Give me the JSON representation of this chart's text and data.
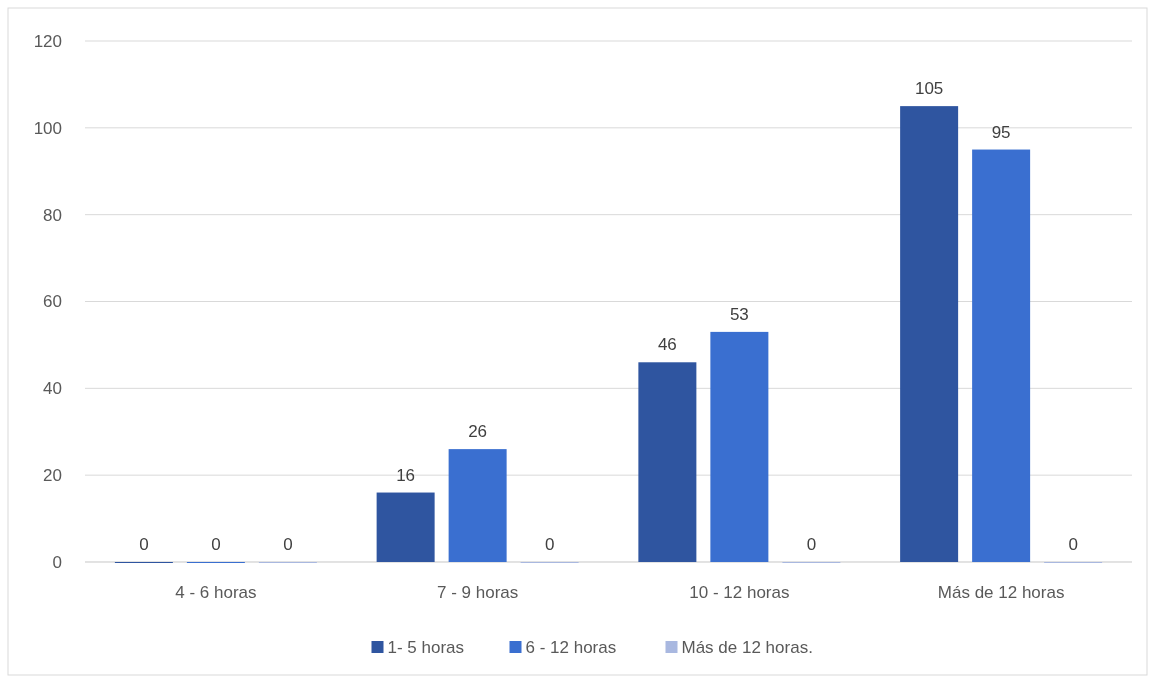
{
  "chart_data": {
    "type": "bar",
    "categories": [
      "4 - 6 horas",
      "7 - 9 horas",
      "10 - 12 horas",
      "Más de 12 horas"
    ],
    "series": [
      {
        "name": "1- 5 horas",
        "color": "#2f55a0",
        "values": [
          0,
          16,
          46,
          105
        ]
      },
      {
        "name": "6 - 12 horas",
        "color": "#3a6fd0",
        "values": [
          0,
          26,
          53,
          95
        ]
      },
      {
        "name": "Más de 12 horas.",
        "color": "#a9b8e0",
        "values": [
          0,
          0,
          0,
          0
        ]
      }
    ],
    "ylim": [
      0,
      120
    ],
    "yticks": [
      0,
      20,
      40,
      60,
      80,
      100,
      120
    ],
    "grid": "y",
    "legend": "bottom",
    "data_labels": true
  }
}
